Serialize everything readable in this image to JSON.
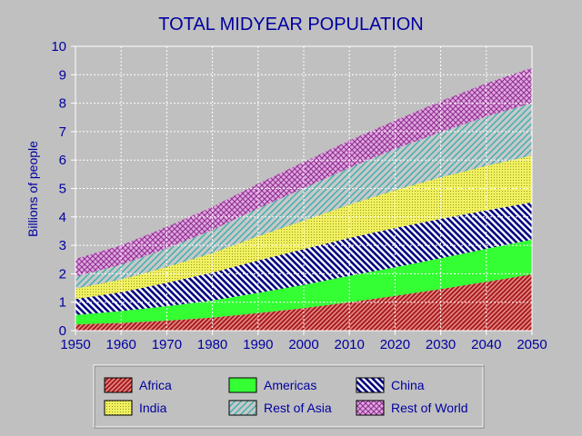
{
  "chart_data": {
    "type": "area",
    "stacked": true,
    "title": "TOTAL MIDYEAR POPULATION",
    "xlabel": "",
    "ylabel": "Billions of people",
    "xlim": [
      1950,
      2050
    ],
    "ylim": [
      0,
      10
    ],
    "grid": true,
    "x": [
      1950,
      1960,
      1970,
      1980,
      1990,
      2000,
      2010,
      2020,
      2030,
      2040,
      2050
    ],
    "x_ticks": [
      "1950",
      "1960",
      "1970",
      "1980",
      "1990",
      "2000",
      "2010",
      "2020",
      "2030",
      "2040",
      "2050"
    ],
    "y_ticks": [
      "0",
      "1",
      "2",
      "3",
      "4",
      "5",
      "6",
      "7",
      "8",
      "9",
      "10"
    ],
    "series": [
      {
        "name": "Africa",
        "color": "#b02020",
        "pattern": "diag-red",
        "values": [
          0.22,
          0.27,
          0.35,
          0.46,
          0.62,
          0.79,
          1.0,
          1.22,
          1.46,
          1.72,
          1.98
        ]
      },
      {
        "name": "Americas",
        "color": "#33ff33",
        "pattern": "solid-green",
        "values": [
          0.33,
          0.42,
          0.51,
          0.6,
          0.71,
          0.82,
          0.93,
          1.01,
          1.09,
          1.16,
          1.22
        ]
      },
      {
        "name": "China",
        "color": "#000080",
        "pattern": "diag-navy",
        "values": [
          0.56,
          0.66,
          0.82,
          0.98,
          1.14,
          1.26,
          1.33,
          1.38,
          1.38,
          1.35,
          1.31
        ]
      },
      {
        "name": "India",
        "color": "#e8e830",
        "pattern": "grid-yellow",
        "values": [
          0.37,
          0.45,
          0.56,
          0.69,
          0.85,
          1.0,
          1.17,
          1.33,
          1.46,
          1.57,
          1.65
        ]
      },
      {
        "name": "Rest of Asia",
        "color": "#60c0c0",
        "pattern": "diag-cyan",
        "values": [
          0.42,
          0.52,
          0.66,
          0.81,
          0.98,
          1.14,
          1.3,
          1.45,
          1.59,
          1.73,
          1.85
        ]
      },
      {
        "name": "Rest of World",
        "color": "#c060c0",
        "pattern": "cross-purple",
        "values": [
          0.62,
          0.68,
          0.75,
          0.81,
          0.87,
          0.92,
          0.96,
          1.0,
          1.09,
          1.17,
          1.24
        ]
      }
    ],
    "legend": {
      "position": "bottom",
      "entries": [
        "Africa",
        "Americas",
        "China",
        "India",
        "Rest of Asia",
        "Rest of World"
      ]
    }
  }
}
